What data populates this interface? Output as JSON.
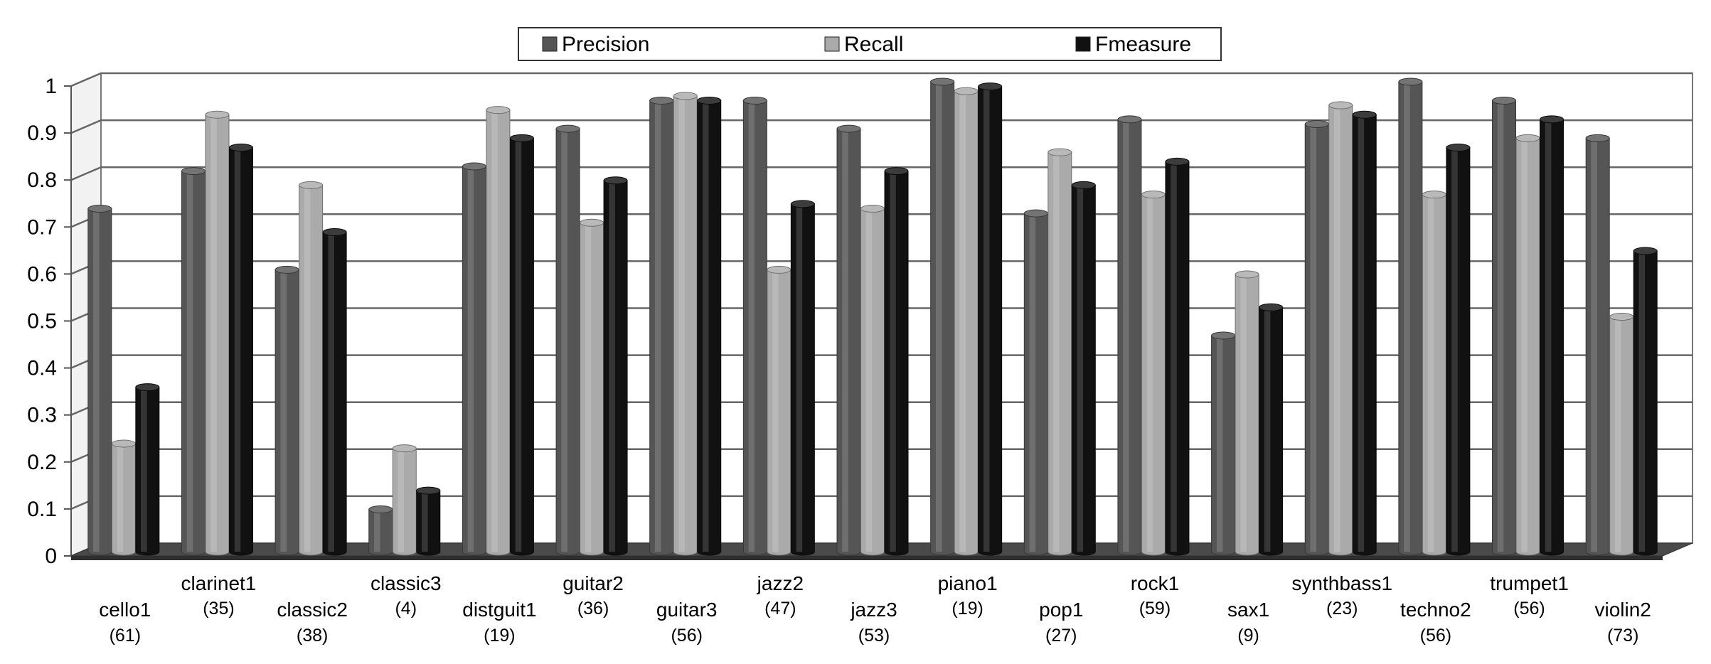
{
  "chart_data": {
    "type": "bar",
    "ylim": [
      0,
      1
    ],
    "yticks": [
      "0",
      "0.1",
      "0.2",
      "0.3",
      "0.4",
      "0.5",
      "0.6",
      "0.7",
      "0.8",
      "0.9",
      "1"
    ],
    "grid": true,
    "legend_position": "top-center",
    "categories": [
      "cello1",
      "clarinet1",
      "classic2",
      "classic3",
      "distguit1",
      "guitar2",
      "guitar3",
      "jazz2",
      "jazz3",
      "piano1",
      "pop1",
      "rock1",
      "sax1",
      "synthbass1",
      "techno2",
      "trumpet1",
      "violin2"
    ],
    "counts": [
      "(61)",
      "(35)",
      "(38)",
      "(4)",
      "(19)",
      "(36)",
      "(56)",
      "(47)",
      "(53)",
      "(19)",
      "(27)",
      "(59)",
      "(9)",
      "(23)",
      "(56)",
      "(56)",
      "(73)"
    ],
    "series": [
      {
        "name": "Precision",
        "color": "#555555",
        "values": [
          0.73,
          0.81,
          0.6,
          0.09,
          0.82,
          0.9,
          0.96,
          0.96,
          0.9,
          1.0,
          0.72,
          0.92,
          0.46,
          0.91,
          1.0,
          0.96,
          0.88
        ]
      },
      {
        "name": "Recall",
        "color": "#aaaaaa",
        "values": [
          0.23,
          0.93,
          0.78,
          0.22,
          0.94,
          0.7,
          0.97,
          0.6,
          0.73,
          0.98,
          0.85,
          0.76,
          0.59,
          0.95,
          0.76,
          0.88,
          0.5
        ]
      },
      {
        "name": "Fmeasure",
        "color": "#111111",
        "values": [
          0.35,
          0.86,
          0.68,
          0.13,
          0.88,
          0.79,
          0.96,
          0.74,
          0.81,
          0.99,
          0.78,
          0.83,
          0.52,
          0.93,
          0.86,
          0.92,
          0.64
        ]
      }
    ]
  }
}
